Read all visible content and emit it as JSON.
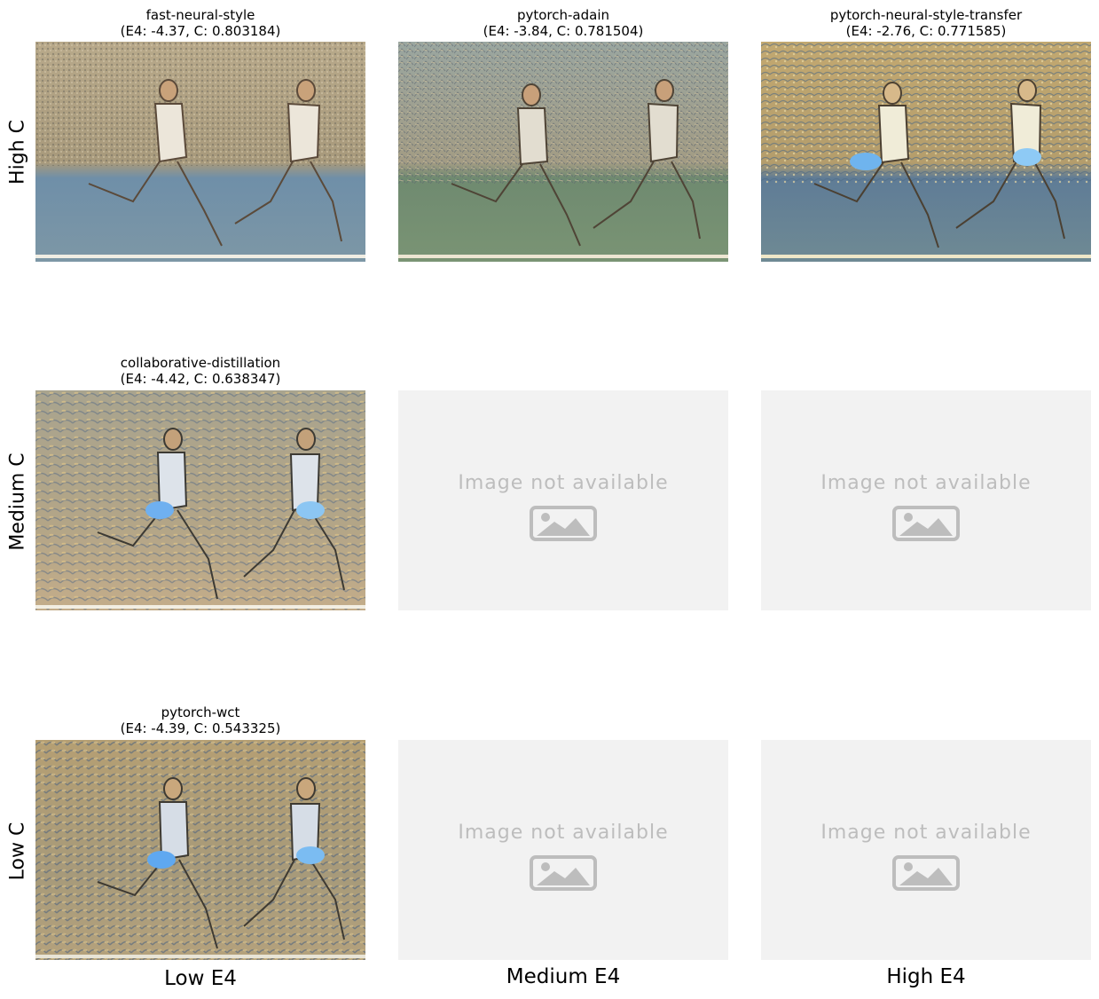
{
  "row_labels": {
    "high": "High C",
    "medium": "Medium C",
    "low": "Low C"
  },
  "col_labels": {
    "low": "Low E4",
    "medium": "Medium E4",
    "high": "High E4"
  },
  "panels": {
    "r0c0": {
      "title": "fast-neural-style",
      "metrics": "(E4: -4.37, C: 0.803184)"
    },
    "r0c1": {
      "title": "pytorch-adain",
      "metrics": "(E4: -3.84, C: 0.781504)"
    },
    "r0c2": {
      "title": "pytorch-neural-style-transfer",
      "metrics": "(E4: -2.76, C: 0.771585)"
    },
    "r1c0": {
      "title": "collaborative-distillation",
      "metrics": "(E4: -4.42, C: 0.638347)"
    },
    "r2c0": {
      "title": "pytorch-wct",
      "metrics": "(E4: -4.39, C: 0.543325)"
    }
  },
  "placeholder_text": "Image not available",
  "icons": {
    "placeholder": "image-icon"
  },
  "colors": {
    "placeholder_bg": "#f2f2f2",
    "placeholder_fg": "#bdbdbd"
  }
}
